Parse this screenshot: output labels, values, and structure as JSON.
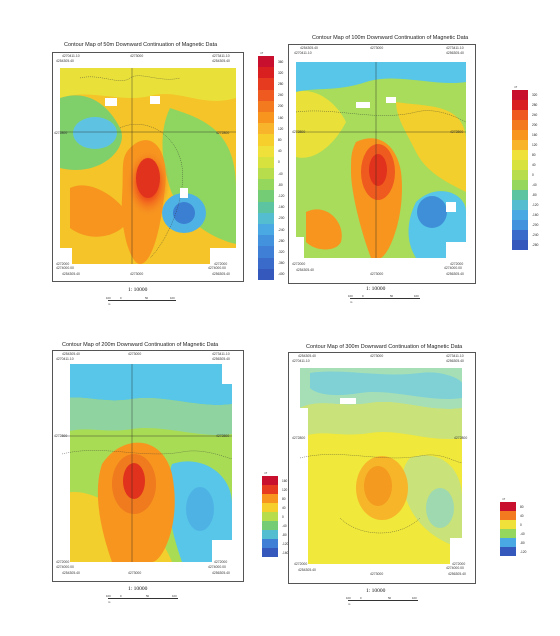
{
  "panels": [
    {
      "title": "Contour Map of 50m Downward Continuation of Magnetic Data",
      "scale": "1: 10000",
      "coords": {
        "tl": "4270411.10",
        "tl2": "4254305.40",
        "tc": "4273000",
        "tr": "4273411.10",
        "tr2": "4254305.40",
        "ml": "4272800",
        "mr": "4272800",
        "bl": "4272000",
        "bl2": "4274000.00",
        "bl3": "4254305.40",
        "bc": "4273000",
        "br": "4272000",
        "br2": "4274000.00",
        "br3": "4256305.40"
      },
      "legend": [
        "360",
        "320",
        "280",
        "240",
        "200",
        "160",
        "120",
        "80",
        "40",
        "0",
        "-40",
        "-80",
        "-120",
        "-160",
        "-200",
        "-240",
        "-280",
        "-320",
        "-360",
        "-400"
      ],
      "legend_unit": "nT"
    },
    {
      "title": "Contour Map of 100m Downward Continuation of Magnetic Data",
      "scale": "1: 10000",
      "coords": {
        "tl": "4254305.40",
        "tl2": "4270411.10",
        "tc": "4273000",
        "tr": "4273411.10",
        "tr2": "4256305.40",
        "ml": "4272800",
        "mr": "4272800",
        "bl": "4272000",
        "bl2": "4254305.40",
        "bc": "4273000",
        "br": "4272000",
        "br2": "4274000.00",
        "br3": "4256305.40"
      },
      "legend": [
        "320",
        "280",
        "240",
        "200",
        "160",
        "120",
        "80",
        "40",
        "0",
        "-40",
        "-80",
        "-120",
        "-160",
        "-200",
        "-240",
        "-280"
      ],
      "legend_unit": "nT"
    },
    {
      "title": "Contour Map of 200m Downward Continuation of Magnetic Data",
      "scale": "1: 10000",
      "coords": {
        "tl": "4254305.40",
        "tl2": "4270411.10",
        "tc": "4273000",
        "tr": "4273411.10",
        "tr2": "4256305.40",
        "ml": "4272800",
        "mr": "4272800",
        "bl": "4272000",
        "bl2": "4274000.00",
        "bl3": "4254305.40",
        "bc": "4273000",
        "br": "4272000",
        "br2": "4274000.00",
        "br3": "4256305.40"
      },
      "legend": [
        "160",
        "120",
        "80",
        "40",
        "0",
        "-40",
        "-80",
        "-120",
        "-160"
      ],
      "legend_unit": "nT"
    },
    {
      "title": "Contour Map of 300m Downward Continuation of Magnetic Data",
      "scale": "1: 10000",
      "coords": {
        "tl": "4254305.40",
        "tl2": "4270411.10",
        "tc": "4273000",
        "tr": "4273411.10",
        "tr2": "4256305.40",
        "ml": "4272800",
        "mr": "4272800",
        "bl": "4272000",
        "bl2": "4254305.40",
        "bc": "4273000",
        "br": "4272000",
        "br2": "4274000.00",
        "br3": "4256305.40"
      },
      "legend": [
        "80",
        "40",
        "0",
        "-40",
        "-80",
        "-120"
      ],
      "legend_unit": "nT"
    }
  ],
  "scale_ticks": [
    "100",
    "0",
    "50",
    "100"
  ],
  "scale_unit": "m",
  "colors": {
    "red": "#e0321c",
    "orange": "#f7951f",
    "yellow": "#f8e21c",
    "green": "#9fd64a",
    "cyan": "#57c6e8",
    "blue": "#3f7fd6"
  }
}
